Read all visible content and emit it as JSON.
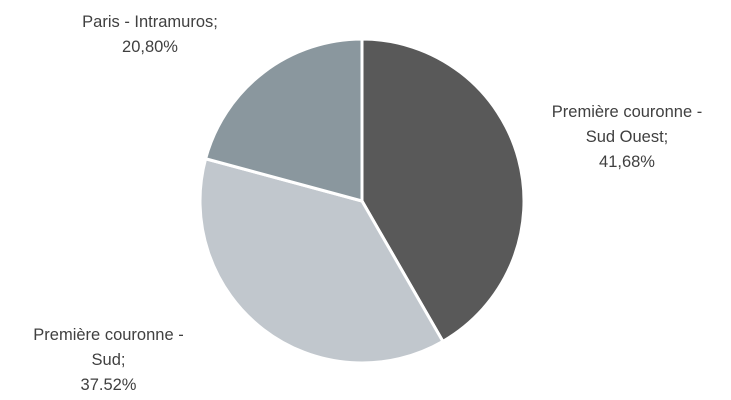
{
  "chart_data": {
    "type": "pie",
    "title": "",
    "slices": [
      {
        "label_lines": [
          "Première couronne -",
          "Sud Ouest;",
          "41,68%"
        ],
        "name": "Première couronne - Sud Ouest",
        "value": 41.68,
        "value_text": "41,68%",
        "color": "#595959"
      },
      {
        "label_lines": [
          "Première couronne -",
          "Sud;",
          "37.52%"
        ],
        "name": "Première couronne - Sud",
        "value": 37.52,
        "value_text": "37.52%",
        "color": "#c1c7cd"
      },
      {
        "label_lines": [
          "Paris - Intramuros;",
          "20,80%"
        ],
        "name": "Paris - Intramuros",
        "value": 20.8,
        "value_text": "20,80%",
        "color": "#8a979e"
      }
    ],
    "start_angle": "12 o'clock",
    "direction": "clockwise",
    "label_color": "#404040",
    "separator_color": "#ffffff"
  }
}
